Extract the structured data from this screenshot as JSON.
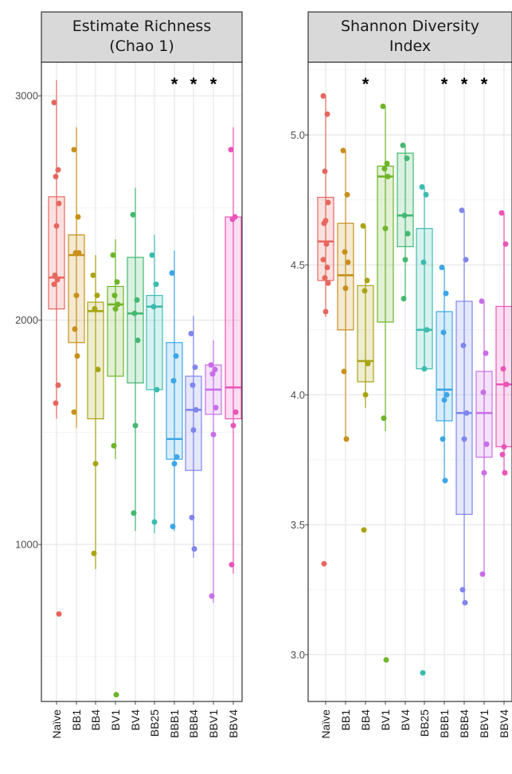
{
  "chart_data": [
    {
      "type": "box",
      "title": "Estimate Richness\n(Chao 1)",
      "categories": [
        "Naïve",
        "BB1",
        "BB4",
        "BV1",
        "BV4",
        "BB25",
        "BBB1",
        "BBB4",
        "BBV1",
        "BBV4"
      ],
      "colors": [
        "#e6675f",
        "#c8901b",
        "#a9a414",
        "#6fb52a",
        "#44b870",
        "#3cbcb0",
        "#3ca6e6",
        "#7f86ec",
        "#c86ee8",
        "#ea55b8"
      ],
      "ylim": [
        300,
        3150
      ],
      "yticks": [
        1000,
        2000,
        3000
      ],
      "yticklabels": [
        "1000",
        "2000",
        "3000"
      ],
      "significance": [
        "",
        "",
        "",
        "",
        "",
        "",
        "*",
        "*",
        "*",
        ""
      ],
      "boxes": [
        {
          "min": 1560,
          "q1": 2050,
          "median": 2190,
          "q3": 2550,
          "max": 3070
        },
        {
          "min": 1520,
          "q1": 1900,
          "median": 2290,
          "q3": 2380,
          "max": 2860
        },
        {
          "min": 890,
          "q1": 1560,
          "median": 2040,
          "q3": 2080,
          "max": 2290
        },
        {
          "min": 1380,
          "q1": 1750,
          "median": 2070,
          "q3": 2150,
          "max": 2360
        },
        {
          "min": 1060,
          "q1": 1720,
          "median": 2030,
          "q3": 2280,
          "max": 2590
        },
        {
          "min": 1050,
          "q1": 1690,
          "median": 2060,
          "q3": 2110,
          "max": 2380
        },
        {
          "min": 1060,
          "q1": 1380,
          "median": 1470,
          "q3": 1900,
          "max": 2310
        },
        {
          "min": 940,
          "q1": 1330,
          "median": 1600,
          "q3": 1750,
          "max": 2020
        },
        {
          "min": 740,
          "q1": 1580,
          "median": 1690,
          "q3": 1800,
          "max": 1910
        },
        {
          "min": 870,
          "q1": 1560,
          "median": 1700,
          "q3": 2460,
          "max": 2860
        }
      ],
      "points": [
        [
          2970,
          2670,
          2640,
          2520,
          2420,
          2200,
          2180,
          2160,
          1710,
          1630,
          690
        ],
        [
          2760,
          2460,
          2300,
          2300,
          2110,
          1960,
          1840,
          1590
        ],
        [
          2200,
          2110,
          2050,
          1780,
          1360,
          960
        ],
        [
          2290,
          2170,
          2110,
          2070,
          2050,
          1440,
          330
        ],
        [
          2470,
          2090,
          2030,
          1910,
          1530,
          1140
        ],
        [
          2290,
          2160,
          2060,
          1690,
          1100
        ],
        [
          2210,
          1840,
          1730,
          1390,
          1360,
          1080
        ],
        [
          1940,
          1790,
          1710,
          1600,
          1510,
          1120,
          980
        ],
        [
          1800,
          1780,
          1760,
          1610,
          1490,
          770
        ],
        [
          2760,
          2460,
          2450,
          1590,
          1530,
          910
        ]
      ]
    },
    {
      "type": "box",
      "title": "Shannon Diversity\nIndex",
      "categories": [
        "Naïve",
        "BB1",
        "BB4",
        "BV1",
        "BV4",
        "BB25",
        "BBB1",
        "BBB4",
        "BBV1",
        "BBV4"
      ],
      "colors": [
        "#e6675f",
        "#c8901b",
        "#a9a414",
        "#6fb52a",
        "#44b870",
        "#3cbcb0",
        "#3ca6e6",
        "#7f86ec",
        "#c86ee8",
        "#ea55b8"
      ],
      "ylim": [
        2.82,
        5.28
      ],
      "yticks": [
        3.0,
        3.5,
        4.0,
        4.5,
        5.0
      ],
      "yticklabels": [
        "3.0",
        "3.5",
        "4.0",
        "4.5",
        "5.0"
      ],
      "significance": [
        "",
        "",
        "*",
        "",
        "",
        "",
        "*",
        "*",
        "*",
        ""
      ],
      "boxes": [
        {
          "min": 4.3,
          "q1": 4.44,
          "median": 4.59,
          "q3": 4.76,
          "max": 5.15
        },
        {
          "min": 3.83,
          "q1": 4.25,
          "median": 4.46,
          "q3": 4.66,
          "max": 4.94
        },
        {
          "min": 3.95,
          "q1": 4.05,
          "median": 4.13,
          "q3": 4.42,
          "max": 4.65
        },
        {
          "min": 3.86,
          "q1": 4.28,
          "median": 4.84,
          "q3": 4.88,
          "max": 5.11
        },
        {
          "min": 4.37,
          "q1": 4.57,
          "median": 4.69,
          "q3": 4.93,
          "max": 4.96
        },
        {
          "min": 4.1,
          "q1": 4.1,
          "median": 4.25,
          "q3": 4.64,
          "max": 4.8
        },
        {
          "min": 3.67,
          "q1": 3.9,
          "median": 4.02,
          "q3": 4.32,
          "max": 4.49
        },
        {
          "min": 3.2,
          "q1": 3.54,
          "median": 3.93,
          "q3": 4.36,
          "max": 4.71
        },
        {
          "min": 3.31,
          "q1": 3.76,
          "median": 3.93,
          "q3": 4.09,
          "max": 4.36
        },
        {
          "min": 3.69,
          "q1": 3.8,
          "median": 4.04,
          "q3": 4.34,
          "max": 4.7
        }
      ],
      "points": [
        [
          5.15,
          5.08,
          4.86,
          4.74,
          4.67,
          4.66,
          4.58,
          4.52,
          4.49,
          4.45,
          4.43,
          4.32,
          3.35
        ],
        [
          4.94,
          4.77,
          4.55,
          4.51,
          4.41,
          4.09,
          3.83
        ],
        [
          4.65,
          4.44,
          4.4,
          4.12,
          4.0,
          3.48
        ],
        [
          5.11,
          4.89,
          4.87,
          4.84,
          4.64,
          3.91,
          2.98
        ],
        [
          4.96,
          4.91,
          4.69,
          4.62,
          4.52,
          4.37
        ],
        [
          4.8,
          4.77,
          4.51,
          4.25,
          4.1,
          2.93
        ],
        [
          4.49,
          4.39,
          4.24,
          4.0,
          3.98,
          3.83,
          3.67
        ],
        [
          4.71,
          4.52,
          4.19,
          3.93,
          3.83,
          3.25,
          3.2
        ],
        [
          4.36,
          4.16,
          4.01,
          3.81,
          3.7,
          3.31
        ],
        [
          4.7,
          4.58,
          4.1,
          4.04,
          3.8,
          3.77,
          3.7
        ]
      ]
    }
  ]
}
